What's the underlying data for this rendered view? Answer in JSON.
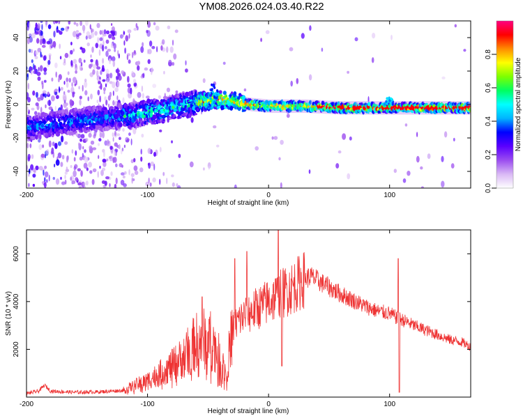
{
  "title": "YM08.2026.024.03.40.R22",
  "chart_data": [
    {
      "type": "heatmap",
      "title": "YM08.2026.024.03.40.R22",
      "xlabel": "Height of straight line (km)",
      "ylabel": "Frequency (Hz)",
      "xlim": [
        -200,
        167
      ],
      "ylim": [
        -50,
        50
      ],
      "x_ticks": [
        -200,
        -100,
        0,
        100
      ],
      "y_ticks": [
        -40,
        -20,
        0,
        20,
        40
      ],
      "colorbar": {
        "label": "Normalized spectral amplitude",
        "range": [
          0.0,
          1.0
        ],
        "ticks": [
          "0.0",
          "0.2",
          "0.4",
          "0.6",
          "0.8"
        ],
        "colormap": [
          "#ffffff",
          "#d9b8f5",
          "#9b4df0",
          "#5a00ff",
          "#0000ff",
          "#00b4ff",
          "#00ffff",
          "#00ff60",
          "#7dff00",
          "#ffff00",
          "#ff8c00",
          "#ff0000",
          "#ff0080"
        ]
      },
      "ridge": {
        "x": [
          -200,
          -180,
          -150,
          -120,
          -100,
          -80,
          -60,
          -45,
          -30,
          -15,
          0,
          30,
          60,
          100,
          167
        ],
        "frequency_hz": [
          -14,
          -12,
          -9,
          -7,
          -5,
          -2,
          1,
          3,
          2,
          0,
          -1,
          -1,
          -2,
          -2,
          -2
        ]
      }
    },
    {
      "type": "line",
      "xlabel": "Height of straight line (km)",
      "ylabel": "SNR (10 * v/v)",
      "xlim": [
        -200,
        167
      ],
      "ylim": [
        0,
        7000
      ],
      "x_ticks": [
        -200,
        -100,
        0,
        100
      ],
      "y_ticks": [
        2000,
        4000,
        6000
      ],
      "color": "#ee3333",
      "series": [
        {
          "name": "SNR",
          "x": [
            -200,
            -190,
            -185,
            -180,
            -160,
            -140,
            -120,
            -110,
            -100,
            -90,
            -80,
            -70,
            -60,
            -50,
            -45,
            -35,
            -30,
            -25,
            -20,
            -10,
            0,
            10,
            20,
            30,
            35,
            40,
            50,
            60,
            70,
            80,
            90,
            100,
            105,
            110,
            120,
            130,
            140,
            150,
            160,
            167
          ],
          "values": [
            150,
            250,
            500,
            250,
            200,
            220,
            280,
            500,
            700,
            1000,
            1300,
            1700,
            2300,
            2500,
            2200,
            1000,
            2800,
            3200,
            3400,
            3700,
            4000,
            4300,
            4600,
            4950,
            5050,
            4900,
            4600,
            4300,
            4050,
            3800,
            3600,
            3500,
            3350,
            3250,
            3000,
            2800,
            2600,
            2400,
            2300,
            2100
          ]
        }
      ],
      "spikes": [
        {
          "x": -55,
          "value": 4200
        },
        {
          "x": -28,
          "value": 5800
        },
        {
          "x": -18,
          "value": 6100
        },
        {
          "x": 8,
          "value": 7000
        },
        {
          "x": 11,
          "value": 1300
        },
        {
          "x": 107,
          "value": 5800
        },
        {
          "x": 108,
          "value": 200
        }
      ]
    }
  ]
}
